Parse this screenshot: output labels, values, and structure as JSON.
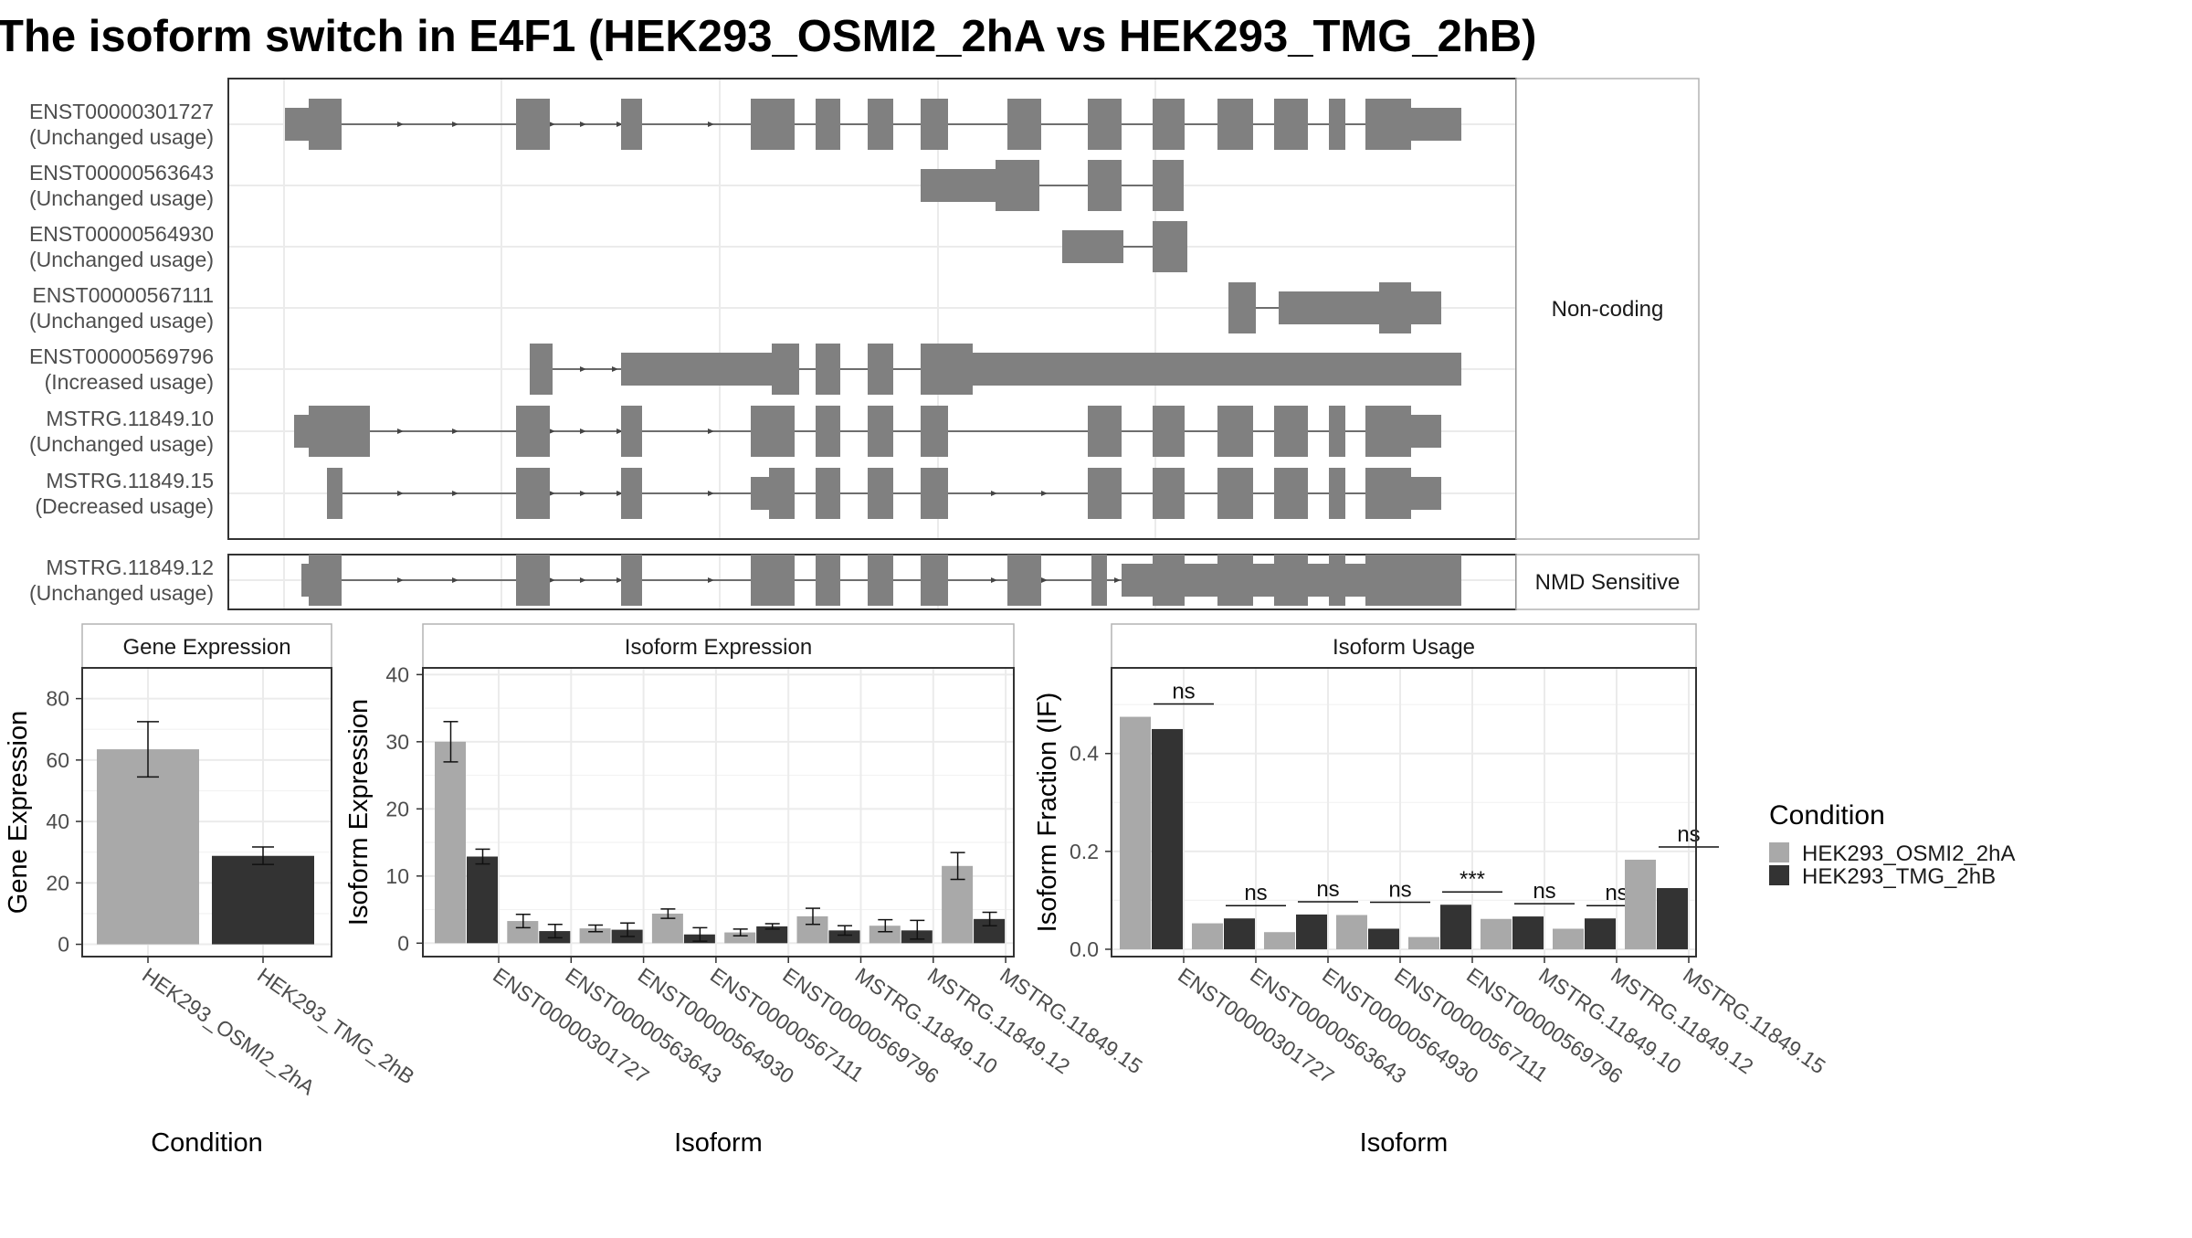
{
  "title": "The isoform switch in E4F1 (HEK293_OSMI2_2hA vs HEK293_TMG_2hB)",
  "colors": {
    "bar_a": "#a9a9a9",
    "bar_b": "#333333",
    "transcript": "#808080",
    "grid": "#ebebeb",
    "panel_border": "#333333"
  },
  "structure": {
    "groups": [
      {
        "label": "Non-coding",
        "transcripts": [
          {
            "id": "ENST00000301727",
            "usage": "(Unchanged usage)"
          },
          {
            "id": "ENST00000563643",
            "usage": "(Unchanged usage)"
          },
          {
            "id": "ENST00000564930",
            "usage": "(Unchanged usage)"
          },
          {
            "id": "ENST00000567111",
            "usage": "(Unchanged usage)"
          },
          {
            "id": "ENST00000569796",
            "usage": "(Increased usage)"
          },
          {
            "id": "MSTRG.11849.10",
            "usage": "(Unchanged usage)"
          },
          {
            "id": "MSTRG.11849.15",
            "usage": "(Decreased usage)"
          }
        ]
      },
      {
        "label": "NMD Sensitive",
        "transcripts": [
          {
            "id": "MSTRG.11849.12",
            "usage": "(Unchanged usage)"
          }
        ]
      }
    ]
  },
  "legend": {
    "title": "Condition",
    "items": [
      {
        "label": "HEK293_OSMI2_2hA",
        "color": "#a9a9a9"
      },
      {
        "label": "HEK293_TMG_2hB",
        "color": "#333333"
      }
    ]
  },
  "chart_data": [
    {
      "type": "bar",
      "strip": "Gene Expression",
      "xlabel": "Condition",
      "ylabel": "Gene Expression",
      "categories": [
        "HEK293_OSMI2_2hA",
        "HEK293_TMG_2hB"
      ],
      "values": [
        63.5,
        28.8
      ],
      "errors": [
        [
          54.5,
          72.5
        ],
        [
          26.0,
          31.7
        ]
      ],
      "ylim": [
        -4,
        90
      ],
      "yticks": [
        0,
        20,
        40,
        60,
        80
      ]
    },
    {
      "type": "bar",
      "strip": "Isoform Expression",
      "xlabel": "Isoform",
      "ylabel": "Isoform Expression",
      "categories": [
        "ENST00000301727",
        "ENST00000563643",
        "ENST00000564930",
        "ENST00000567111",
        "ENST00000569796",
        "MSTRG.11849.10",
        "MSTRG.11849.12",
        "MSTRG.11849.15"
      ],
      "series": [
        {
          "name": "HEK293_OSMI2_2hA",
          "values": [
            30.0,
            3.3,
            2.2,
            4.4,
            1.6,
            4.0,
            2.6,
            11.5
          ],
          "errors": [
            [
              27.0,
              33.0
            ],
            [
              2.3,
              4.3
            ],
            [
              1.7,
              2.7
            ],
            [
              3.7,
              5.1
            ],
            [
              1.1,
              2.1
            ],
            [
              2.8,
              5.2
            ],
            [
              1.7,
              3.5
            ],
            [
              9.5,
              13.5
            ]
          ]
        },
        {
          "name": "HEK293_TMG_2hB",
          "values": [
            12.9,
            1.8,
            2.0,
            1.3,
            2.5,
            1.9,
            1.9,
            3.6
          ],
          "errors": [
            [
              11.8,
              14.0
            ],
            [
              0.8,
              2.8
            ],
            [
              1.0,
              3.0
            ],
            [
              0.3,
              2.3
            ],
            [
              2.1,
              2.9
            ],
            [
              1.2,
              2.6
            ],
            [
              0.6,
              3.4
            ],
            [
              2.6,
              4.6
            ]
          ]
        }
      ],
      "ylim": [
        -2,
        41
      ],
      "yticks": [
        0,
        10,
        20,
        30,
        40
      ]
    },
    {
      "type": "bar",
      "strip": "Isoform Usage",
      "xlabel": "Isoform",
      "ylabel": "Isoform Fraction (IF)",
      "categories": [
        "ENST00000301727",
        "ENST00000563643",
        "ENST00000564930",
        "ENST00000567111",
        "ENST00000569796",
        "MSTRG.11849.10",
        "MSTRG.11849.12",
        "MSTRG.11849.15"
      ],
      "series": [
        {
          "name": "HEK293_OSMI2_2hA",
          "values": [
            0.475,
            0.053,
            0.035,
            0.07,
            0.025,
            0.062,
            0.042,
            0.183
          ]
        },
        {
          "name": "HEK293_TMG_2hB",
          "values": [
            0.45,
            0.063,
            0.071,
            0.042,
            0.091,
            0.067,
            0.063,
            0.125
          ]
        }
      ],
      "significance": [
        "ns",
        "ns",
        "ns",
        "ns",
        "***",
        "ns",
        "ns",
        "ns"
      ],
      "ylim": [
        -0.015,
        0.575
      ],
      "yticks": [
        0.0,
        0.2,
        0.4
      ],
      "ytick_labels": [
        "0.0",
        "0.2",
        "0.4"
      ]
    }
  ]
}
